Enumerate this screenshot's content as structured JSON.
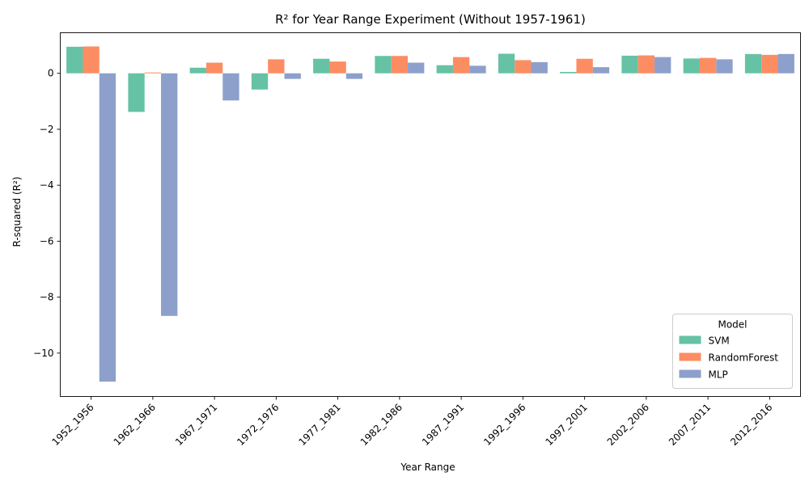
{
  "chart_data": {
    "type": "bar",
    "title": "R² for Year Range Experiment (Without 1957-1961)",
    "xlabel": "Year Range",
    "ylabel": "R-squared (R²)",
    "ylim": [
      -11.55,
      1.45
    ],
    "yticks": [
      0,
      -2,
      -4,
      -6,
      -8,
      -10
    ],
    "yticklabels": [
      "0",
      "−2",
      "−4",
      "−6",
      "−8",
      "−10"
    ],
    "grid": false,
    "legend": {
      "title": "Model",
      "placement": "bottom-right"
    },
    "categories": [
      "1952_1956",
      "1962_1966",
      "1967_1971",
      "1972_1976",
      "1977_1981",
      "1982_1986",
      "1987_1991",
      "1992_1996",
      "1997_2001",
      "2002_2006",
      "2007_2011",
      "2012_2016"
    ],
    "series": [
      {
        "name": "SVM",
        "color": "#66c2a5",
        "values": [
          0.95,
          -1.38,
          0.2,
          -0.58,
          0.52,
          0.62,
          0.29,
          0.7,
          0.05,
          0.63,
          0.53,
          0.69
        ]
      },
      {
        "name": "RandomForest",
        "color": "#fc8d62",
        "values": [
          0.96,
          0.03,
          0.38,
          0.5,
          0.42,
          0.62,
          0.58,
          0.47,
          0.52,
          0.64,
          0.55,
          0.66
        ]
      },
      {
        "name": "MLP",
        "color": "#8da0cb",
        "values": [
          -11.02,
          -8.67,
          -0.97,
          -0.2,
          -0.2,
          0.38,
          0.27,
          0.4,
          0.22,
          0.58,
          0.5,
          0.69
        ]
      }
    ]
  }
}
